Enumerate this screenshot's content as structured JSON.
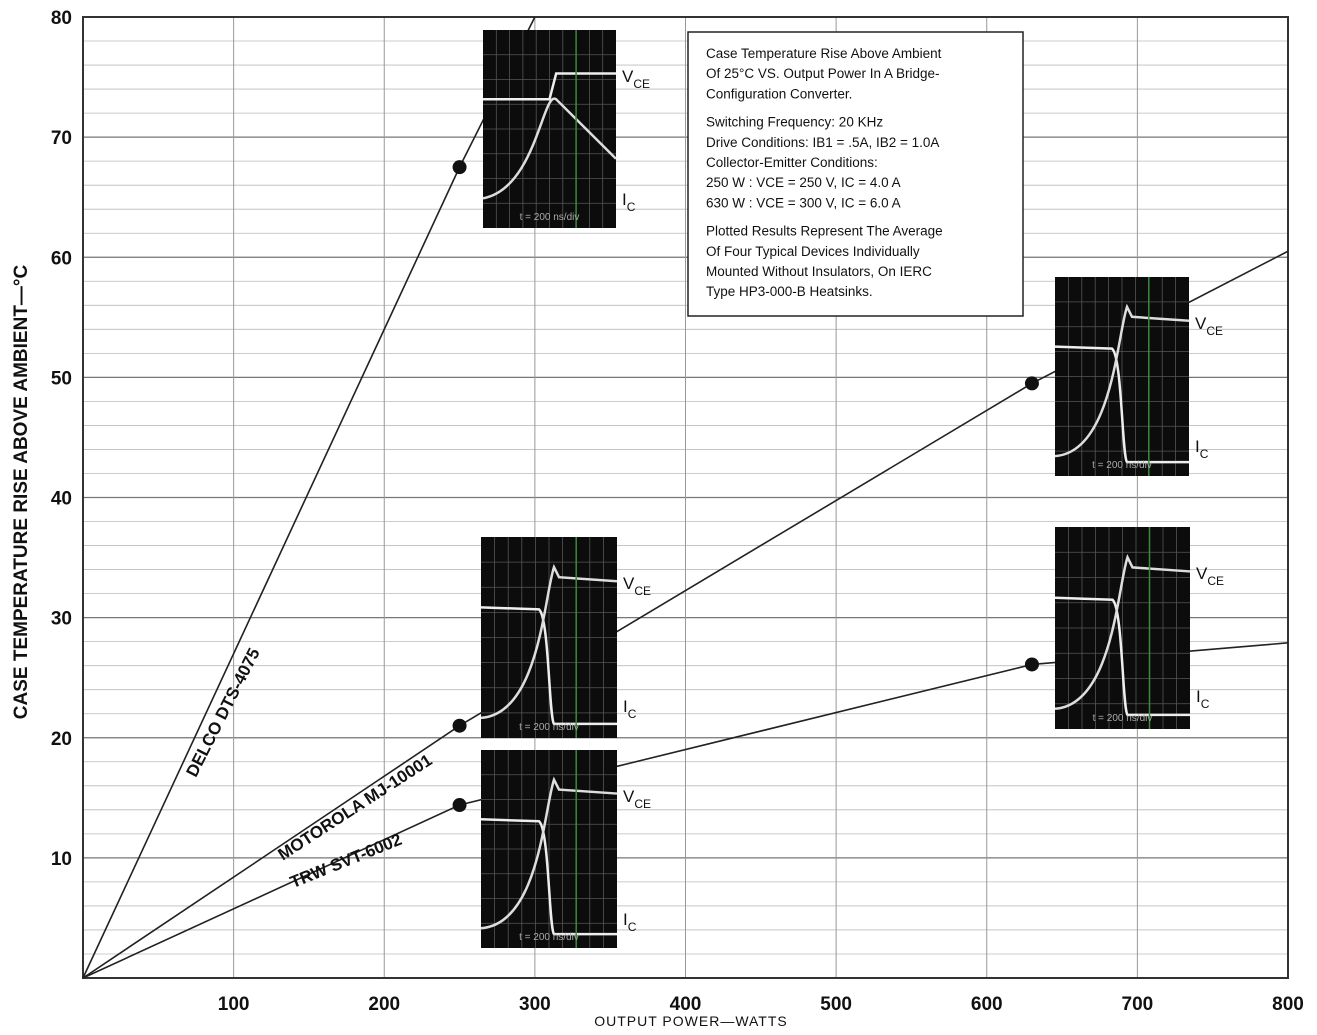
{
  "chart_data": {
    "type": "line",
    "x_label": "OUTPUT POWER—WATTS",
    "y_label": "CASE TEMPERATURE RISE ABOVE AMBIENT—°C",
    "xlim": [
      0,
      800
    ],
    "ylim": [
      0,
      80
    ],
    "xticks": [
      100,
      200,
      300,
      400,
      500,
      600,
      700,
      800
    ],
    "yticks": [
      10,
      20,
      30,
      40,
      50,
      60,
      70,
      80
    ],
    "grid": true,
    "series": [
      {
        "name": "DELCO DTS-4075",
        "color": "#222",
        "x": [
          0,
          250,
          300
        ],
        "values": [
          0,
          67.5,
          80
        ],
        "marked": [
          false,
          true,
          false
        ]
      },
      {
        "name": "MOTOROLA MJ-10001",
        "color": "#222",
        "x": [
          0,
          250,
          630,
          800
        ],
        "values": [
          0,
          21,
          49.5,
          60.5
        ],
        "marked": [
          false,
          true,
          true,
          false
        ]
      },
      {
        "name": "TRW SVT-6002",
        "color": "#222",
        "x": [
          0,
          250,
          630,
          800
        ],
        "values": [
          0,
          14.4,
          26.1,
          27.9
        ],
        "marked": [
          false,
          true,
          true,
          false
        ]
      }
    ],
    "annotation": [
      "Case Temperature Rise Above Ambient",
      "Of 25°C VS. Output Power In A Bridge-",
      "Configuration Converter.",
      "Switching Frequency: 20 KHz",
      "Drive Conditions: IB1 = .5A, IB2 = 1.0A",
      "Collector-Emitter Conditions:",
      "250 W : VCE = 250 V, IC = 4.0 A",
      "630 W : VCE = 300 V, IC = 6.0 A",
      "Plotted Results Represent The Average",
      "Of Four Typical Devices Individually",
      "Mounted Without Insulators, On IERC",
      "Type HP3-000-B Heatsinks."
    ],
    "scopes": [
      {
        "v": "V",
        "v_sub": "CE",
        "i": "I",
        "i_sub": "C",
        "timebase": "t = 200 ns/div"
      },
      {
        "v": "V",
        "v_sub": "CE",
        "i": "I",
        "i_sub": "C",
        "timebase": "t = 200 ns/div"
      },
      {
        "v": "V",
        "v_sub": "CE",
        "i": "I",
        "i_sub": "C",
        "timebase": "t = 200 ns/div"
      },
      {
        "v": "V",
        "v_sub": "CE",
        "i": "I",
        "i_sub": "C",
        "timebase": "t = 200 ns/div"
      },
      {
        "v": "V",
        "v_sub": "CE",
        "i": "I",
        "i_sub": "C",
        "timebase": "t = 200 ns/div"
      }
    ]
  }
}
